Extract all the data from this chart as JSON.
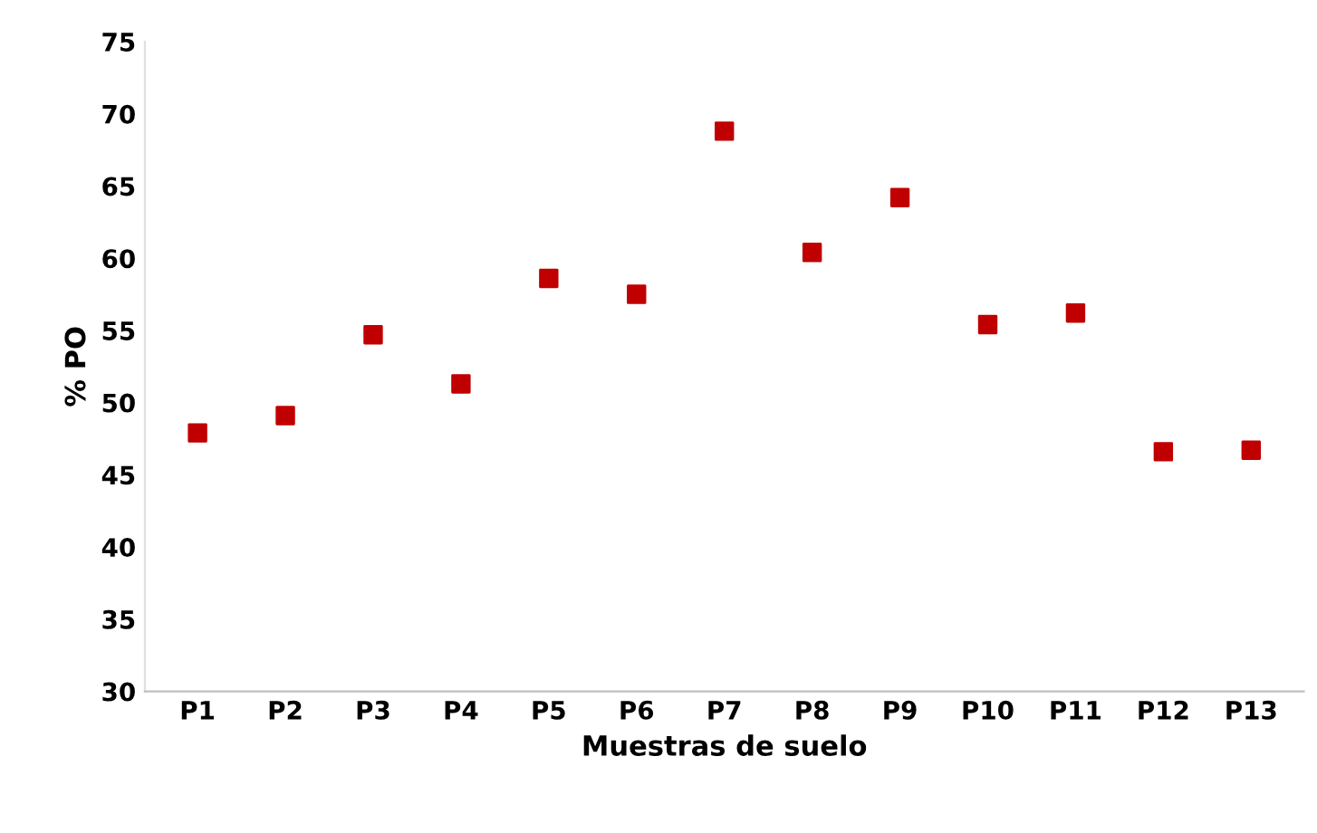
{
  "chart_data": {
    "type": "scatter",
    "xlabel": "Muestras de suelo",
    "ylabel": "% PO",
    "categories": [
      "P1",
      "P2",
      "P3",
      "P4",
      "P5",
      "P6",
      "P7",
      "P8",
      "P9",
      "P10",
      "P11",
      "P12",
      "P13"
    ],
    "series": [
      {
        "color": "#c00000",
        "values": [
          47.9,
          49.1,
          54.7,
          51.3,
          58.6,
          57.5,
          68.8,
          60.4,
          64.2,
          55.4,
          56.2,
          46.6,
          46.7
        ]
      }
    ],
    "ylim": [
      30,
      75
    ],
    "yticks": [
      30,
      35,
      40,
      45,
      50,
      55,
      60,
      65,
      70,
      75
    ],
    "marker": "square",
    "grid": false,
    "legend": false
  }
}
